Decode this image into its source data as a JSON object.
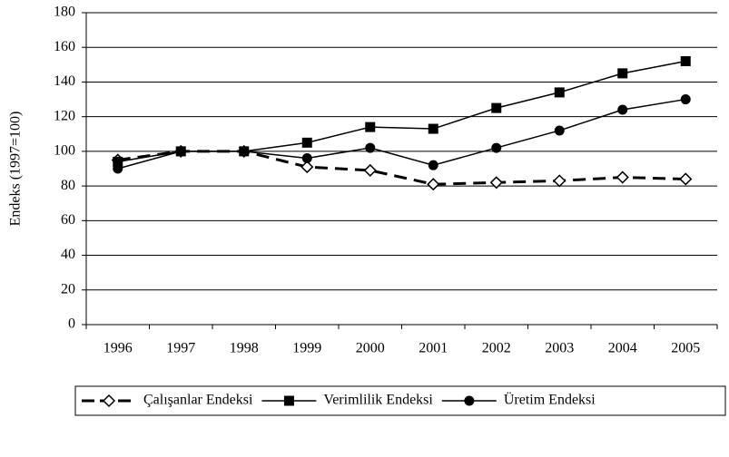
{
  "chart_data": {
    "type": "line",
    "y_label": "Endeks (1997=100)",
    "categories": [
      "1996",
      "1997",
      "1998",
      "1999",
      "2000",
      "2001",
      "2002",
      "2003",
      "2004",
      "2005"
    ],
    "series": [
      {
        "name": "Çalışanlar Endeksi",
        "color": "#000000",
        "dash": true,
        "marker": "diamond",
        "values": [
          95,
          100,
          100,
          91,
          89,
          81,
          82,
          83,
          85,
          84
        ]
      },
      {
        "name": "Verimlilik Endeksi",
        "color": "#000000",
        "dash": false,
        "marker": "square",
        "values": [
          94,
          100,
          100,
          105,
          114,
          113,
          125,
          134,
          145,
          152
        ]
      },
      {
        "name": "Üretim Endeksi",
        "color": "#000000",
        "dash": false,
        "marker": "circle",
        "values": [
          90,
          100,
          100,
          96,
          102,
          92,
          102,
          112,
          124,
          130
        ]
      }
    ],
    "ylim": [
      0,
      180
    ],
    "yticks": [
      0,
      20,
      40,
      60,
      80,
      100,
      120,
      140,
      160,
      180
    ],
    "grid": true,
    "legend": "bottom"
  }
}
